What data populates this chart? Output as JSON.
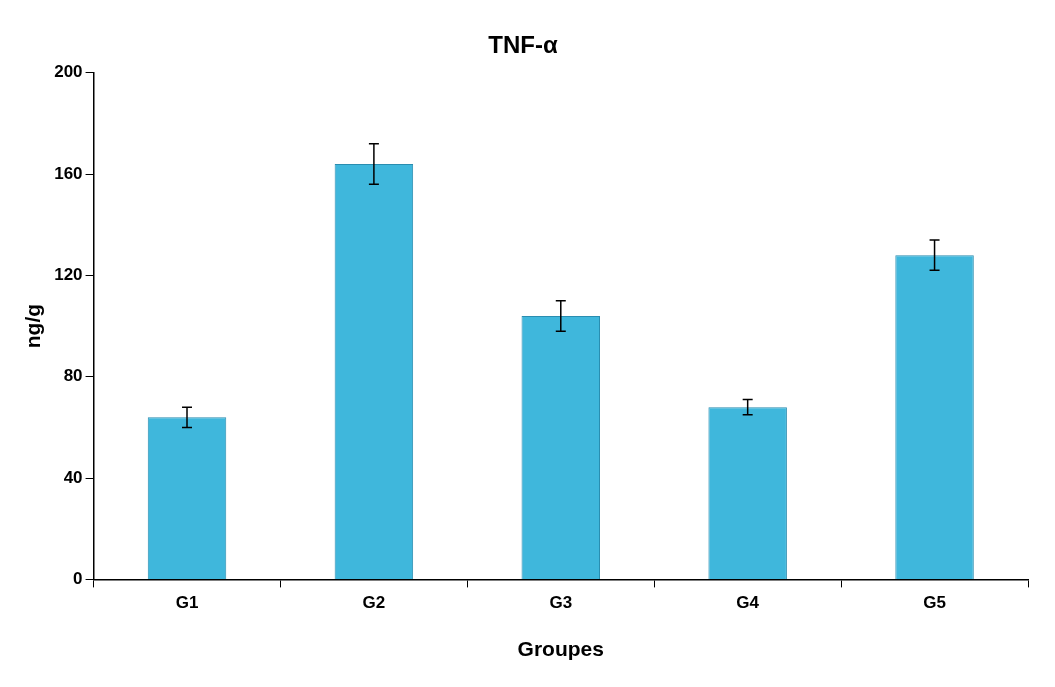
{
  "chart_data": {
    "type": "bar",
    "title": "TNF-α",
    "xlabel": "Groupes",
    "ylabel": "ng/g",
    "categories": [
      "G1",
      "G2",
      "G3",
      "G4",
      "G5"
    ],
    "values": [
      64,
      164,
      104,
      68,
      128
    ],
    "errors": [
      4,
      8,
      6,
      3,
      6
    ],
    "color": "#3fb7dc",
    "ylim": [
      0,
      200
    ],
    "yticks": [
      0,
      40,
      80,
      120,
      160,
      200
    ],
    "grid": false,
    "legend": false
  }
}
